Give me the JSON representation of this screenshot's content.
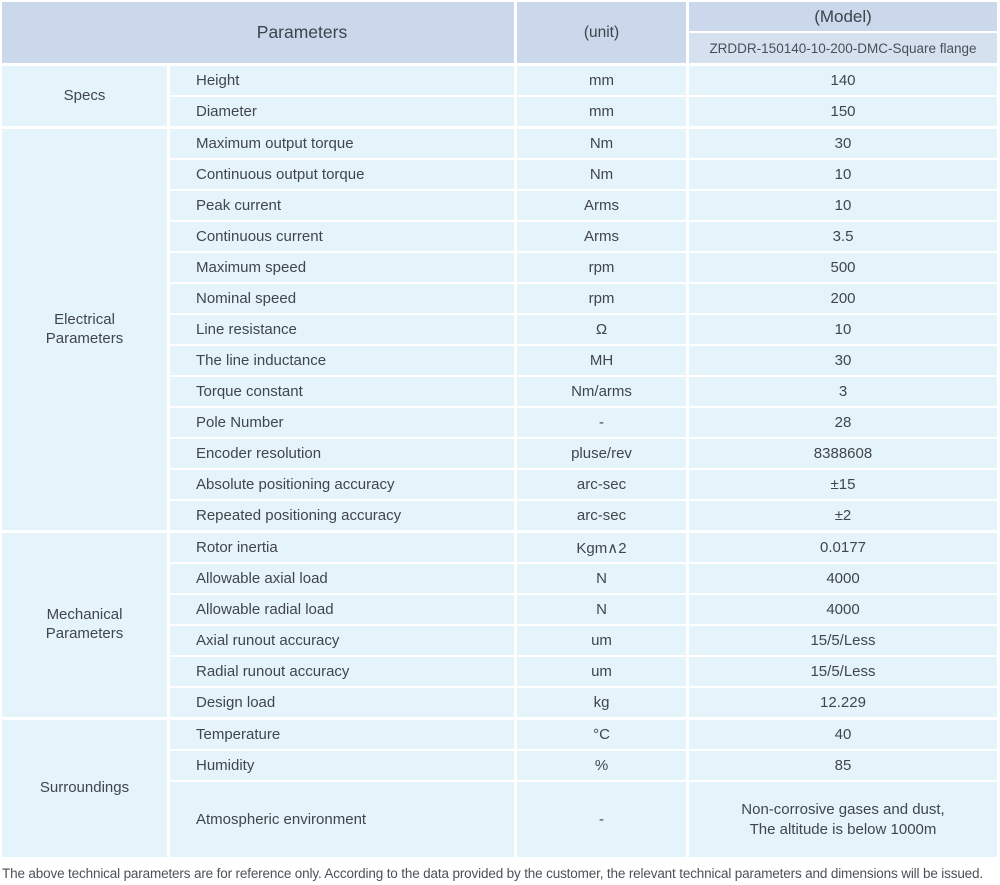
{
  "header": {
    "parameters_label": "Parameters",
    "unit_label": "(unit)",
    "model_label": "(Model)",
    "model_value": "ZRDDR-150140-10-200-DMC-Square flange"
  },
  "sections": [
    {
      "label": "Specs",
      "rows": [
        {
          "name": "Height",
          "unit": "mm",
          "value": "140"
        },
        {
          "name": "Diameter",
          "unit": "mm",
          "value": "150"
        }
      ]
    },
    {
      "label": "Electrical\nParameters",
      "rows": [
        {
          "name": "Maximum output torque",
          "unit": "Nm",
          "value": "30"
        },
        {
          "name": "Continuous output torque",
          "unit": "Nm",
          "value": "10"
        },
        {
          "name": "Peak current",
          "unit": "Arms",
          "value": "10"
        },
        {
          "name": "Continuous current",
          "unit": "Arms",
          "value": "3.5"
        },
        {
          "name": "Maximum speed",
          "unit": "rpm",
          "value": "500"
        },
        {
          "name": "Nominal speed",
          "unit": "rpm",
          "value": "200"
        },
        {
          "name": "Line resistance",
          "unit": "Ω",
          "value": "10"
        },
        {
          "name": "The line inductance",
          "unit": "MH",
          "value": "30"
        },
        {
          "name": "Torque constant",
          "unit": "Nm/arms",
          "value": "3"
        },
        {
          "name": "Pole Number",
          "unit": "-",
          "value": "28"
        },
        {
          "name": "Encoder resolution",
          "unit": "pluse/rev",
          "value": "8388608"
        },
        {
          "name": "Absolute positioning accuracy",
          "unit": "arc-sec",
          "value": "±15"
        },
        {
          "name": "Repeated positioning accuracy",
          "unit": "arc-sec",
          "value": "±2"
        }
      ]
    },
    {
      "label": "Mechanical\nParameters",
      "rows": [
        {
          "name": "Rotor inertia",
          "unit": "Kgm∧2",
          "value": "0.0177"
        },
        {
          "name": "Allowable axial load",
          "unit": "N",
          "value": "4000"
        },
        {
          "name": "Allowable radial load",
          "unit": "N",
          "value": "4000"
        },
        {
          "name": "Axial runout accuracy",
          "unit": "um",
          "value": "15/5/Less"
        },
        {
          "name": "Radial runout accuracy",
          "unit": "um",
          "value": "15/5/Less"
        },
        {
          "name": "Design load",
          "unit": "kg",
          "value": "12.229"
        }
      ]
    },
    {
      "label": "Surroundings",
      "rows": [
        {
          "name": "Temperature",
          "unit": "°C",
          "value": "40"
        },
        {
          "name": "Humidity",
          "unit": "%",
          "value": "85"
        },
        {
          "name": "Atmospheric environment",
          "unit": "-",
          "value": "Non-corrosive gases and dust,\nThe altitude is below 1000m",
          "tall": true
        }
      ]
    }
  ],
  "footer_note": "The above technical parameters are for reference only. According to the data provided by the customer, the relevant technical parameters and dimensions will be issued.",
  "colors": {
    "header_bg": "#cbd8eb",
    "model_subheader_bg": "#d6e1f0",
    "row_bg": "#e5f3fb",
    "text": "#40464c",
    "footer_text": "#4b5257"
  }
}
